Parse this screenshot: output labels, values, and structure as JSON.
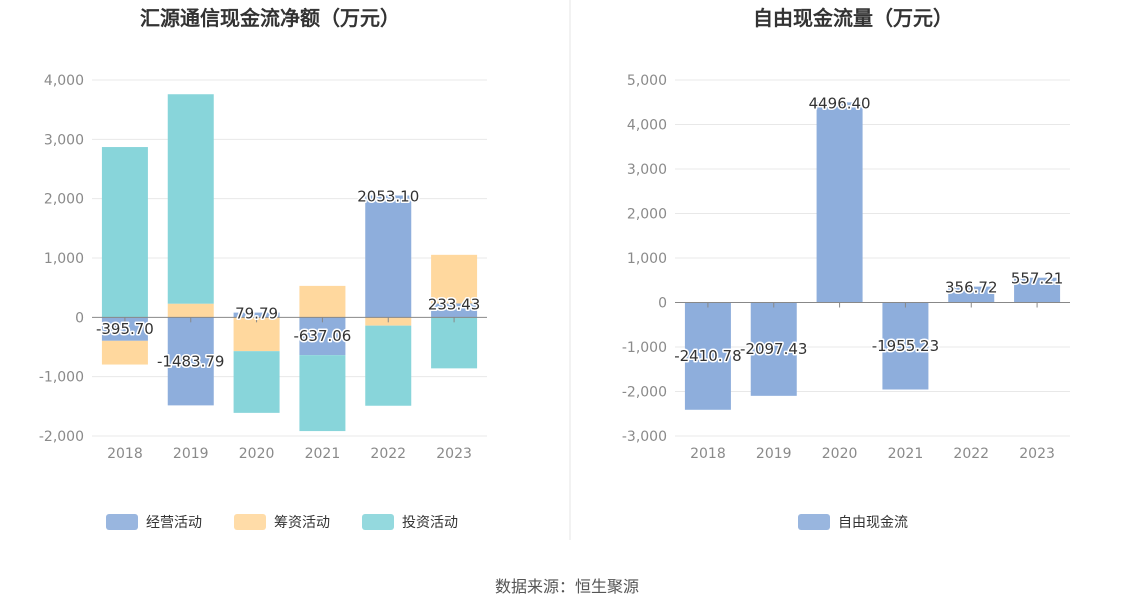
{
  "source": "数据来源：恒生聚源",
  "chart_data": [
    {
      "type": "bar",
      "stacked": true,
      "title": "汇源通信现金流净额（万元）",
      "categories": [
        "2018",
        "2019",
        "2020",
        "2021",
        "2022",
        "2023"
      ],
      "ylim": [
        -2000,
        4000
      ],
      "yticks": [
        -2000,
        -1000,
        0,
        1000,
        2000,
        3000,
        4000
      ],
      "ytick_labels": [
        "-2,000",
        "-1,000",
        "0",
        "1,000",
        "2,000",
        "3,000",
        "4,000"
      ],
      "grid": true,
      "legend_position": "bottom",
      "series": [
        {
          "name": "经营活动",
          "color": "#8eaedc",
          "values": [
            -395.7,
            -1483.79,
            79.79,
            -637.06,
            2053.1,
            233.43
          ]
        },
        {
          "name": "筹资活动",
          "color": "#ffd89e",
          "values": [
            -400,
            230,
            -570,
            530,
            -140,
            820
          ]
        },
        {
          "name": "投资活动",
          "color": "#88d5da",
          "values": [
            2870,
            3530,
            -1040,
            -1280,
            -1350,
            -860
          ]
        }
      ],
      "data_labels": [
        "-395.70",
        "-1483.79",
        "79.79",
        "-637.06",
        "2053.10",
        "233.43"
      ]
    },
    {
      "type": "bar",
      "title": "自由现金流量（万元）",
      "categories": [
        "2018",
        "2019",
        "2020",
        "2021",
        "2022",
        "2023"
      ],
      "ylim": [
        -3000,
        5000
      ],
      "yticks": [
        -3000,
        -2000,
        -1000,
        0,
        1000,
        2000,
        3000,
        4000,
        5000
      ],
      "ytick_labels": [
        "-3,000",
        "-2,000",
        "-1,000",
        "0",
        "1,000",
        "2,000",
        "3,000",
        "4,000",
        "5,000"
      ],
      "grid": true,
      "legend_position": "bottom",
      "series": [
        {
          "name": "自由现金流",
          "color": "#8eaedc",
          "values": [
            -2410.78,
            -2097.43,
            4496.4,
            -1955.23,
            356.72,
            557.21
          ]
        }
      ],
      "data_labels": [
        "-2410.78",
        "-2097.43",
        "4496.40",
        "-1955.23",
        "356.72",
        "557.21"
      ]
    }
  ]
}
